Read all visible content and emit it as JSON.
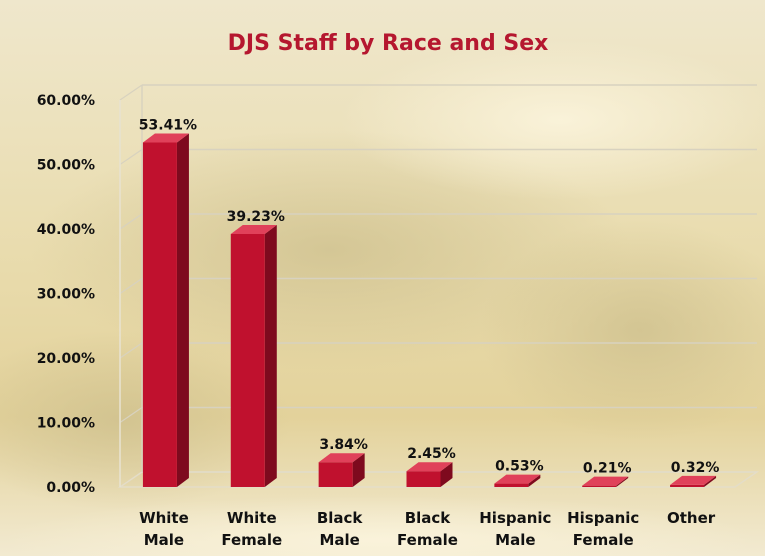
{
  "chart_data": {
    "type": "bar",
    "title": "DJS Staff by Race and Sex",
    "xlabel": "",
    "ylabel": "",
    "ylim": [
      0,
      60
    ],
    "yticks": [
      "0.00%",
      "10.00%",
      "20.00%",
      "30.00%",
      "40.00%",
      "50.00%",
      "60.00%"
    ],
    "categories": [
      [
        "White",
        "Male"
      ],
      [
        "White",
        "Female"
      ],
      [
        "Black",
        "Male"
      ],
      [
        "Black",
        "Female"
      ],
      [
        "Hispanic",
        "Male"
      ],
      [
        "Hispanic",
        "Female"
      ],
      [
        "Other"
      ]
    ],
    "values": [
      53.41,
      39.23,
      3.84,
      2.45,
      0.53,
      0.21,
      0.32
    ],
    "data_labels": [
      "53.41%",
      "39.23%",
      "3.84%",
      "2.45%",
      "0.53%",
      "0.21%",
      "0.32%"
    ],
    "grid": true,
    "legend": "none",
    "style": "3d-column",
    "colors": {
      "bar_front": "#c0112e",
      "bar_side": "#7e0a1e",
      "bar_top": "#e0415a",
      "title": "#b5172f",
      "labels": "#111111",
      "grid": "#d8d2bf"
    }
  }
}
